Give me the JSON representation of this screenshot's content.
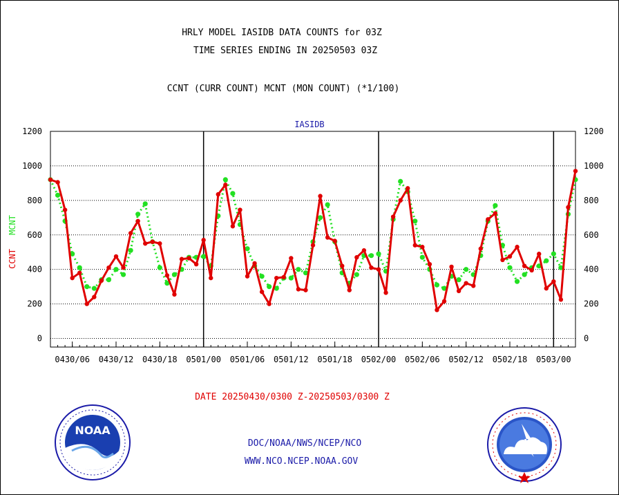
{
  "colors": {
    "ccnt": "#e00000",
    "mcnt": "#22e022",
    "link": "#1a1aa8"
  },
  "header": {
    "line1": "HRLY MODEL IASIDB DATA COUNTS for 03Z",
    "line2": "TIME SERIES ENDING IN 20250503 03Z",
    "line3": "CCNT (CURR COUNT) MCNT (MON COUNT) (*1/100)"
  },
  "footer": {
    "date_range": "DATE 20250430/0300 Z-20250503/0300 Z",
    "org_line": "DOC/NOAA/NWS/NCEP/NCO",
    "url_line": "WWW.NCO.NCEP.NOAA.GOV"
  },
  "logos": {
    "noaa_left": "noaa-logo",
    "nws_right": "nws-logo"
  },
  "chart_data": {
    "type": "line",
    "title": "IASIDB",
    "ylabel_ccnt": "CCNT",
    "ylabel_mcnt": "MCNT",
    "ylim": [
      -50,
      1200
    ],
    "yticks": [
      0,
      200,
      400,
      600,
      800,
      1000,
      1200
    ],
    "grid": true,
    "x_range_hours": [
      0,
      72
    ],
    "x_tick_labels": [
      "0430/06",
      "0430/12",
      "0430/18",
      "0501/00",
      "0501/06",
      "0501/12",
      "0501/18",
      "0502/00",
      "0502/06",
      "0502/12",
      "0502/18",
      "0503/00"
    ],
    "day_boundaries_hours": [
      21,
      45,
      69
    ],
    "series": [
      {
        "name": "CCNT",
        "color": "#e00000",
        "style": "solid",
        "values": [
          920,
          905,
          745,
          350,
          380,
          200,
          240,
          335,
          410,
          475,
          410,
          610,
          680,
          550,
          560,
          550,
          365,
          255,
          460,
          465,
          430,
          570,
          350,
          835,
          890,
          650,
          745,
          360,
          435,
          270,
          200,
          350,
          355,
          465,
          285,
          280,
          540,
          825,
          585,
          565,
          420,
          280,
          470,
          510,
          410,
          400,
          265,
          705,
          800,
          870,
          540,
          530,
          430,
          165,
          215,
          415,
          275,
          320,
          305,
          520,
          690,
          725,
          455,
          475,
          530,
          420,
          395,
          490,
          290,
          330,
          225,
          760,
          970
        ]
      },
      {
        "name": "MCNT",
        "color": "#22e022",
        "style": "dotted",
        "values": [
          920,
          830,
          680,
          490,
          410,
          300,
          290,
          340,
          340,
          400,
          370,
          510,
          720,
          780,
          560,
          410,
          320,
          370,
          400,
          470,
          470,
          475,
          420,
          710,
          920,
          840,
          660,
          520,
          420,
          360,
          300,
          290,
          350,
          350,
          400,
          380,
          560,
          700,
          775,
          560,
          380,
          320,
          370,
          480,
          480,
          490,
          390,
          690,
          910,
          850,
          680,
          470,
          400,
          310,
          290,
          360,
          340,
          400,
          370,
          480,
          680,
          770,
          540,
          410,
          330,
          370,
          410,
          420,
          450,
          490,
          410,
          720,
          920
        ]
      }
    ]
  }
}
